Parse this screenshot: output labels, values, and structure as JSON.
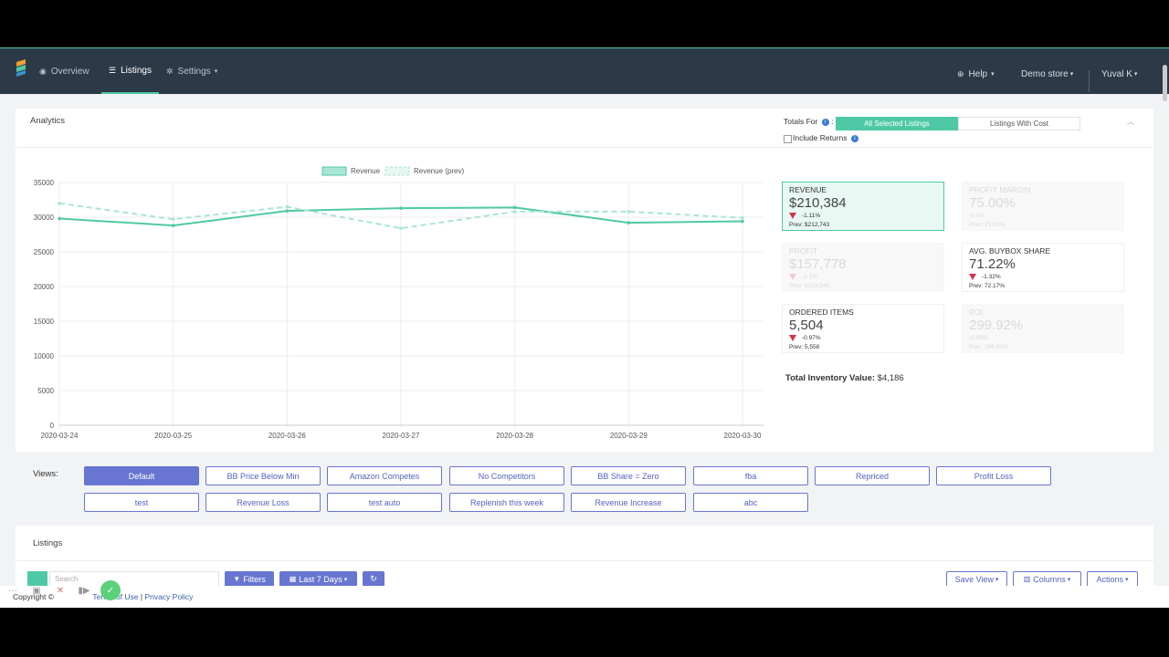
{
  "nav": {
    "overview": "Overview",
    "listings": "Listings",
    "settings": "Settings",
    "help": "Help",
    "store": "Demo store",
    "user": "Yuval K"
  },
  "analytics": {
    "title": "Analytics",
    "totals_for": "Totals For",
    "toggle_all": "All Selected Listings",
    "toggle_cost": "Listings With Cost",
    "include_returns": "Include Returns"
  },
  "metrics": [
    {
      "label": "REVENUE",
      "value": "$210,384",
      "change": "-1.11%",
      "prev": "Prev: $212,743"
    },
    {
      "label": "PROFIT MARGIN",
      "value": "75.00%",
      "change": "-0.0%",
      "prev": "Prev: 75.00%"
    },
    {
      "label": "PROFIT",
      "value": "$157,778",
      "change": "-1.1%",
      "prev": "Prev: $159,545"
    },
    {
      "label": "AVG. BUYBOX SHARE",
      "value": "71.22%",
      "change": "-1.32%",
      "prev": "Prev: 72.17%"
    },
    {
      "label": "ORDERED ITEMS",
      "value": "5,504",
      "change": "-0.97%",
      "prev": "Prev: 5,558"
    },
    {
      "label": "ROI",
      "value": "299.92%",
      "change": "-0.00%",
      "prev": "Prev: 299.92%"
    }
  ],
  "inventory": {
    "label": "Total Inventory Value:",
    "value": "$4,186"
  },
  "views": {
    "label": "Views:",
    "buttons": [
      "Default",
      "BB Price Below Min",
      "Amazon Competes",
      "No Competitors",
      "BB Share = Zero",
      "fba",
      "Repriced",
      "Profit Loss",
      "test",
      "Revenue Loss",
      "test auto",
      "Replenish this week",
      "Revenue Increase",
      "abc"
    ]
  },
  "listings": {
    "title": "Listings",
    "filters": "Filters",
    "date": "Last 7 Days",
    "save_view": "Save View",
    "columns": "Columns",
    "actions": "Actions",
    "search_placeholder": "Search"
  },
  "footer": {
    "copyright": "Copyright ©",
    "terms": "Terms of Use",
    "sep": "|",
    "privacy": "Privacy Policy"
  },
  "icons": {
    "overview": "dashboard-icon",
    "listings": "list-icon",
    "settings": "gear-icon",
    "help": "lifebuoy-icon",
    "info": "info-icon"
  },
  "colors": {
    "accent": "#4fc9a5",
    "nav_bg": "#2c3a48",
    "view_button": "#6876d1",
    "down": "#d6304e"
  },
  "chart_data": {
    "type": "line",
    "x": [
      "2020-03-24",
      "2020-03-25",
      "2020-03-26",
      "2020-03-27",
      "2020-03-28",
      "2020-03-29",
      "2020-03-30"
    ],
    "series": [
      {
        "name": "Revenue",
        "values": [
          29800,
          28800,
          30900,
          31300,
          31400,
          29200,
          29400
        ],
        "style": "solid"
      },
      {
        "name": "Revenue (prev)",
        "values": [
          32000,
          29700,
          31500,
          28400,
          30800,
          30800,
          29900
        ],
        "style": "dashed"
      }
    ],
    "ylim": [
      0,
      35000
    ],
    "yticks": [
      0,
      5000,
      10000,
      15000,
      20000,
      25000,
      30000,
      35000
    ],
    "grid": true,
    "legend": "top"
  }
}
